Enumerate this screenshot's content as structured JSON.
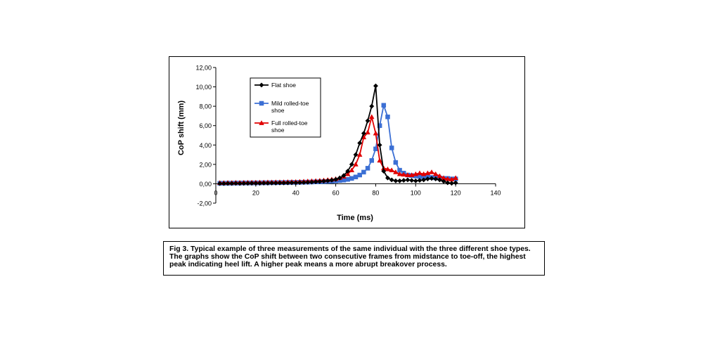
{
  "chart_data": {
    "type": "line",
    "title": "",
    "xlabel": "Time (ms)",
    "ylabel": "CoP shift (mm)",
    "xlim": [
      0,
      140
    ],
    "ylim": [
      -2,
      12
    ],
    "x_ticks": [
      "0",
      "20",
      "40",
      "60",
      "80",
      "100",
      "120",
      "140"
    ],
    "y_ticks": [
      "-2,00",
      "0,00",
      "2,00",
      "4,00",
      "6,00",
      "8,00",
      "10,00",
      "12,00"
    ],
    "grid": false,
    "legend": "inside-top-left",
    "series": [
      {
        "name": "Flat shoe",
        "color": "#000000",
        "marker": "diamond",
        "x": [
          2,
          4,
          6,
          8,
          10,
          12,
          14,
          16,
          18,
          20,
          22,
          24,
          26,
          28,
          30,
          32,
          34,
          36,
          38,
          40,
          42,
          44,
          46,
          48,
          50,
          52,
          54,
          56,
          58,
          60,
          62,
          64,
          66,
          68,
          70,
          72,
          74,
          76,
          78,
          80,
          82,
          84,
          86,
          88,
          90,
          92,
          94,
          96,
          98,
          100,
          102,
          104,
          106,
          108,
          110,
          112,
          114,
          116,
          118,
          120
        ],
        "y": [
          0.02,
          0.02,
          0.03,
          0.03,
          0.04,
          0.03,
          0.04,
          0.04,
          0.05,
          0.05,
          0.05,
          0.06,
          0.06,
          0.07,
          0.07,
          0.08,
          0.08,
          0.09,
          0.1,
          0.1,
          0.12,
          0.13,
          0.15,
          0.17,
          0.2,
          0.23,
          0.27,
          0.31,
          0.37,
          0.45,
          0.6,
          0.85,
          1.3,
          2.0,
          3.0,
          4.2,
          5.2,
          6.5,
          8.0,
          10.1,
          4.0,
          1.3,
          0.6,
          0.4,
          0.3,
          0.3,
          0.35,
          0.4,
          0.35,
          0.3,
          0.35,
          0.4,
          0.5,
          0.55,
          0.5,
          0.4,
          0.25,
          0.1,
          0.05,
          0.1
        ]
      },
      {
        "name": "Mild rolled-toe shoe",
        "color": "#3b6fd4",
        "marker": "square",
        "x": [
          2,
          4,
          6,
          8,
          10,
          12,
          14,
          16,
          18,
          20,
          22,
          24,
          26,
          28,
          30,
          32,
          34,
          36,
          38,
          40,
          42,
          44,
          46,
          48,
          50,
          52,
          54,
          56,
          58,
          60,
          62,
          64,
          66,
          68,
          70,
          72,
          74,
          76,
          78,
          80,
          82,
          84,
          86,
          88,
          90,
          92,
          94,
          96,
          98,
          100,
          102,
          104,
          106,
          108,
          110,
          112,
          114,
          116,
          118,
          120
        ],
        "y": [
          0.05,
          0.05,
          0.06,
          0.06,
          0.07,
          0.07,
          0.08,
          0.08,
          0.08,
          0.09,
          0.09,
          0.1,
          0.1,
          0.11,
          0.11,
          0.12,
          0.12,
          0.13,
          0.14,
          0.14,
          0.15,
          0.16,
          0.17,
          0.18,
          0.2,
          0.21,
          0.23,
          0.25,
          0.27,
          0.3,
          0.34,
          0.38,
          0.45,
          0.55,
          0.7,
          0.9,
          1.2,
          1.6,
          2.4,
          3.6,
          6.0,
          8.1,
          6.9,
          3.7,
          2.2,
          1.4,
          1.1,
          0.9,
          0.85,
          0.8,
          0.75,
          0.7,
          0.7,
          0.65,
          0.6,
          0.6,
          0.55,
          0.55,
          0.5,
          0.5
        ]
      },
      {
        "name": "Full rolled-toe shoe",
        "color": "#e00000",
        "marker": "triangle",
        "x": [
          2,
          4,
          6,
          8,
          10,
          12,
          14,
          16,
          18,
          20,
          22,
          24,
          26,
          28,
          30,
          32,
          34,
          36,
          38,
          40,
          42,
          44,
          46,
          48,
          50,
          52,
          54,
          56,
          58,
          60,
          62,
          64,
          66,
          68,
          70,
          72,
          74,
          76,
          78,
          80,
          82,
          84,
          86,
          88,
          90,
          92,
          94,
          96,
          98,
          100,
          102,
          104,
          106,
          108,
          110,
          112,
          114,
          116,
          118,
          120
        ],
        "y": [
          0.1,
          0.1,
          0.11,
          0.11,
          0.12,
          0.12,
          0.13,
          0.13,
          0.14,
          0.14,
          0.15,
          0.15,
          0.16,
          0.16,
          0.17,
          0.17,
          0.18,
          0.19,
          0.2,
          0.2,
          0.22,
          0.24,
          0.26,
          0.28,
          0.3,
          0.33,
          0.36,
          0.4,
          0.45,
          0.5,
          0.6,
          0.75,
          1.0,
          1.4,
          2.0,
          3.0,
          4.8,
          5.3,
          6.9,
          5.2,
          2.4,
          1.6,
          1.5,
          1.4,
          1.2,
          1.0,
          0.95,
          0.9,
          0.9,
          1.0,
          1.1,
          1.0,
          1.1,
          1.2,
          1.0,
          0.8,
          0.6,
          0.5,
          0.45,
          0.6
        ]
      }
    ]
  },
  "caption": "Fig 3. Typical example of three measurements of the same individual with the three different shoe types. The graphs show the CoP shift between two consecutive frames from midstance to toe-off, the highest peak indicating heel lift. A higher peak means a more abrupt breakover process."
}
